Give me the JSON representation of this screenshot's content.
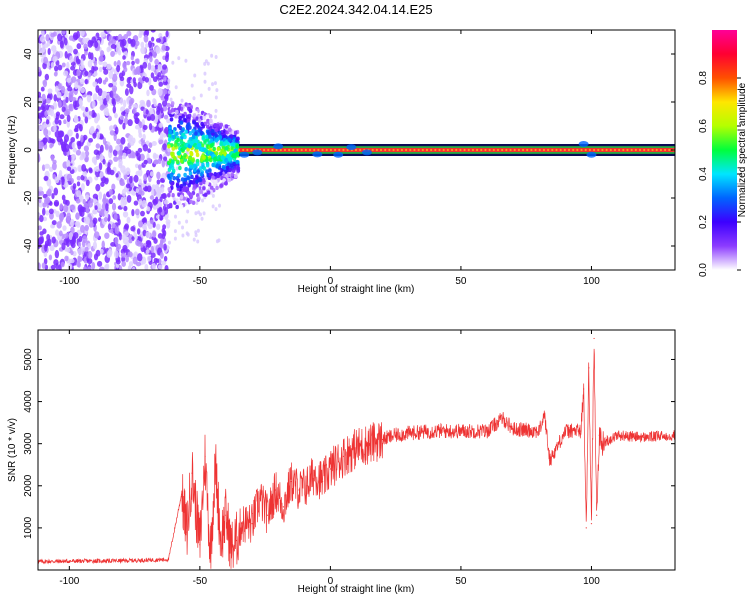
{
  "title": "C2E2.2024.342.04.14.E25",
  "chart_data": [
    {
      "type": "heatmap",
      "xlabel": "Height of straight line (km)",
      "ylabel": "Frequency (Hz)",
      "xlim": [
        -112,
        132
      ],
      "ylim": [
        -50,
        50
      ],
      "xticks": [
        -100,
        -50,
        0,
        50,
        100
      ],
      "yticks": [
        -40,
        -20,
        0,
        20,
        40
      ],
      "colorbar": {
        "label": "Normalized spectral amplitude",
        "range": [
          0,
          1
        ],
        "ticks": [
          "0.0",
          "0.2",
          "0.4",
          "0.6",
          "0.8"
        ],
        "colors": [
          "#ffffff",
          "#8c3cff",
          "#3c00ff",
          "#0064ff",
          "#00e6ff",
          "#00ff3c",
          "#b4ff00",
          "#ffe600",
          "#ff5000",
          "#ff0032",
          "#ff0096"
        ]
      },
      "features": [
        {
          "x_range": [
            -112,
            -62
          ],
          "description": "noise",
          "freq_range": [
            -50,
            50
          ],
          "amplitude": 0.2
        },
        {
          "x_range": [
            -62,
            -35
          ],
          "freq_range": [
            -12,
            8
          ],
          "amplitude": 0.3
        },
        {
          "x_range": [
            -35,
            132
          ],
          "freq_center": 0,
          "freq_halfwidth": 2,
          "amplitude": 0.95
        }
      ]
    },
    {
      "type": "line",
      "xlabel": "Height of straight line (km)",
      "ylabel": "SNR (10 * v/v)",
      "xlim": [
        -112,
        132
      ],
      "ylim": [
        0,
        5700
      ],
      "xticks": [
        -100,
        -50,
        0,
        50,
        100
      ],
      "yticks": [
        1000,
        2000,
        3000,
        4000,
        5000
      ],
      "color": "#ee3333",
      "series": [
        {
          "x": [
            -112,
            -100,
            -80,
            -62,
            -57,
            -55,
            -53,
            -50,
            -48,
            -46,
            -44,
            -42,
            -40,
            -38,
            -36,
            -34,
            -30,
            -27,
            -24,
            -21,
            -18,
            -15,
            -12,
            -9,
            -6,
            -3,
            0,
            5,
            10,
            15,
            20,
            25,
            30,
            40,
            50,
            60,
            66,
            70,
            80,
            82,
            84,
            90,
            96,
            97,
            98,
            99,
            100,
            101,
            102,
            103,
            104,
            110,
            120,
            132
          ],
          "y": [
            200,
            210,
            220,
            250,
            1800,
            900,
            2300,
            600,
            2700,
            400,
            2500,
            700,
            1300,
            500,
            700,
            1100,
            1100,
            1700,
            1300,
            1900,
            1500,
            2100,
            1900,
            2000,
            2300,
            2100,
            2400,
            2700,
            2900,
            3000,
            3100,
            3200,
            3250,
            3300,
            3300,
            3300,
            3600,
            3350,
            3300,
            3700,
            2600,
            3300,
            3300,
            4300,
            1000,
            4800,
            1100,
            5500,
            1300,
            3200,
            3000,
            3200,
            3150,
            3200
          ]
        }
      ]
    }
  ]
}
